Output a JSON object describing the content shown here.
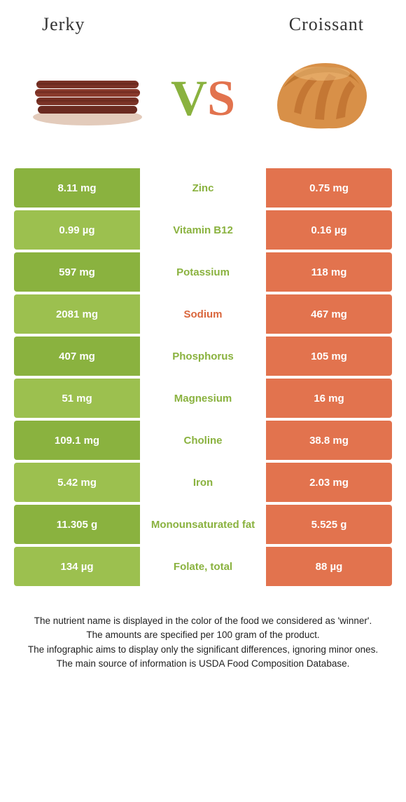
{
  "header": {
    "left_title": "Jerky",
    "right_title": "Croissant"
  },
  "colors": {
    "left_food": "#8ab23f",
    "right_food": "#e2734e",
    "left_food_light": "#9cc04f",
    "sodium_label": "#d9663c"
  },
  "vs": {
    "v": "V",
    "s": "S"
  },
  "rows": [
    {
      "left": "8.11 mg",
      "label": "Zinc",
      "right": "0.75 mg",
      "winner": "left"
    },
    {
      "left": "0.99 µg",
      "label": "Vitamin B12",
      "right": "0.16 µg",
      "winner": "left"
    },
    {
      "left": "597 mg",
      "label": "Potassium",
      "right": "118 mg",
      "winner": "left"
    },
    {
      "left": "2081 mg",
      "label": "Sodium",
      "right": "467 mg",
      "winner": "right_label"
    },
    {
      "left": "407 mg",
      "label": "Phosphorus",
      "right": "105 mg",
      "winner": "left"
    },
    {
      "left": "51 mg",
      "label": "Magnesium",
      "right": "16 mg",
      "winner": "left"
    },
    {
      "left": "109.1 mg",
      "label": "Choline",
      "right": "38.8 mg",
      "winner": "left"
    },
    {
      "left": "5.42 mg",
      "label": "Iron",
      "right": "2.03 mg",
      "winner": "left"
    },
    {
      "left": "11.305 g",
      "label": "Monounsaturated fat",
      "right": "5.525 g",
      "winner": "left"
    },
    {
      "left": "134 µg",
      "label": "Folate, total",
      "right": "88 µg",
      "winner": "left"
    }
  ],
  "footer": {
    "line1": "The nutrient name is displayed in the color of the food we considered as 'winner'.",
    "line2": "The amounts are specified per 100 gram of the product.",
    "line3": "The infographic aims to display only the significant differences, ignoring minor ones.",
    "line4": "The main source of information is USDA Food Composition Database."
  }
}
